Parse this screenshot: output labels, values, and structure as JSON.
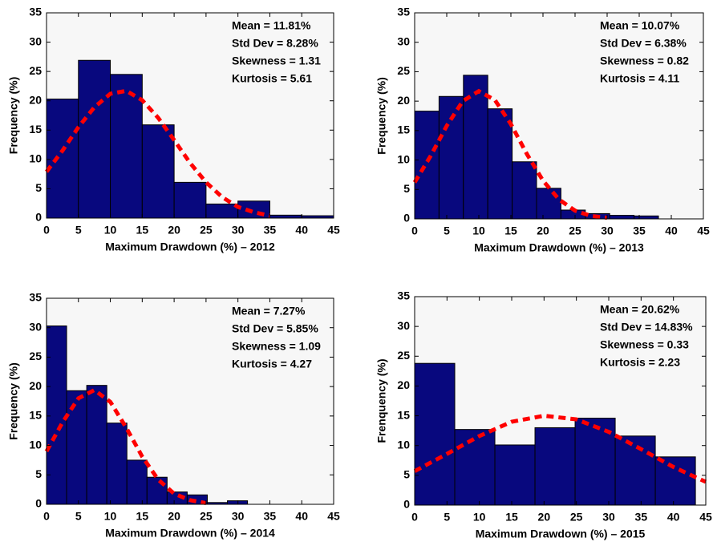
{
  "chart_data": [
    {
      "type": "histogram",
      "xlabel": "Maximum Drawdown (%) – 2012",
      "ylabel": "Frequency (%)",
      "annotations": [
        "Mean = 11.81%",
        "Std Dev = 8.28%",
        "Skewness = 1.31",
        "Kurtosis = 5.61"
      ],
      "bins": [
        0,
        5,
        10,
        15,
        20,
        25,
        30,
        35,
        40,
        45
      ],
      "values": [
        20.3,
        26.9,
        24.5,
        15.9,
        6.1,
        2.4,
        2.9,
        0.5,
        0.4
      ],
      "color": "#08087e",
      "fit": {
        "color": "#ff0000",
        "x": [
          0,
          2.5,
          5,
          7.5,
          10,
          12.5,
          15,
          17.5,
          20,
          22.5,
          25,
          27.5,
          30,
          32.5,
          35
        ],
        "values": [
          7.9,
          11.5,
          15.5,
          18.9,
          21.2,
          21.7,
          20.1,
          17.1,
          13.3,
          9.4,
          6.1,
          3.6,
          1.9,
          1.0,
          0.4
        ]
      },
      "xlim": [
        0,
        45
      ],
      "ylim": [
        0,
        35
      ],
      "xticks": [
        0,
        5,
        10,
        15,
        20,
        25,
        30,
        35,
        40,
        45
      ],
      "yticks": [
        0,
        5,
        10,
        15,
        20,
        25,
        30,
        35
      ]
    },
    {
      "type": "histogram",
      "xlabel": "Maximum Drawdown (%) – 2013",
      "ylabel": "Frequency (%)",
      "annotations": [
        "Mean = 10.07%",
        "Std Dev = 6.38%",
        "Skewness = 0.82",
        "Kurtosis = 4.11"
      ],
      "bins": [
        0,
        3.8,
        7.6,
        11.4,
        15.2,
        19,
        22.8,
        26.6,
        30.4,
        34.2,
        38
      ],
      "values": [
        18.3,
        20.8,
        24.4,
        18.7,
        9.7,
        5.2,
        1.5,
        0.9,
        0.6,
        0.5
      ],
      "color": "#08087e",
      "fit": {
        "color": "#ff0000",
        "x": [
          0,
          2.5,
          5,
          7.5,
          10,
          12.5,
          15,
          17.5,
          20,
          22.5,
          25,
          27.5,
          30
        ],
        "values": [
          6.2,
          10.7,
          15.8,
          20.0,
          21.7,
          20.2,
          16.1,
          11.0,
          6.5,
          3.3,
          1.4,
          0.5,
          0.2
        ]
      },
      "xlim": [
        0,
        45
      ],
      "ylim": [
        0,
        35
      ],
      "xticks": [
        0,
        5,
        10,
        15,
        20,
        25,
        30,
        35,
        40,
        45
      ],
      "yticks": [
        0,
        5,
        10,
        15,
        20,
        25,
        30,
        35
      ]
    },
    {
      "type": "histogram",
      "xlabel": "Maximum Drawdown (%) – 2014",
      "ylabel": "Frequency (%)",
      "annotations": [
        "Mean = 7.27%",
        "Std Dev = 5.85%",
        "Skewness = 1.09",
        "Kurtosis = 4.27"
      ],
      "bins": [
        0,
        3.15,
        6.3,
        9.45,
        12.6,
        15.75,
        18.9,
        22.05,
        25.2,
        28.35,
        31.5
      ],
      "values": [
        30.3,
        19.3,
        20.2,
        13.8,
        7.5,
        4.6,
        2.1,
        1.6,
        0.3,
        0.6
      ],
      "color": "#08087e",
      "fit": {
        "color": "#ff0000",
        "x": [
          0,
          2.5,
          5,
          7.5,
          10,
          12.5,
          15,
          17.5,
          20,
          22.5,
          25
        ],
        "values": [
          9.0,
          13.9,
          18.0,
          19.4,
          17.4,
          13.0,
          8.1,
          4.2,
          1.8,
          0.7,
          0.2
        ]
      },
      "xlim": [
        0,
        45
      ],
      "ylim": [
        0,
        35
      ],
      "xticks": [
        0,
        5,
        10,
        15,
        20,
        25,
        30,
        35,
        40,
        45
      ],
      "yticks": [
        0,
        5,
        10,
        15,
        20,
        25,
        30,
        35
      ]
    },
    {
      "type": "histogram",
      "xlabel": "Maximum Drawdown (%) – 2015",
      "ylabel": "Frenquency (%)",
      "annotations": [
        "Mean = 20.62%",
        "Std Dev = 14.83%",
        "Skewness = 0.33",
        "Kurtosis = 2.23"
      ],
      "bins": [
        0,
        6.2,
        12.4,
        18.6,
        24.8,
        31,
        37.2,
        43.4
      ],
      "values": [
        23.8,
        12.7,
        10.1,
        13.0,
        14.6,
        11.6,
        8.1
      ],
      "color": "#08087e",
      "fit": {
        "color": "#ff0000",
        "x": [
          0,
          5,
          10,
          15,
          20,
          25,
          30,
          35,
          40,
          45
        ],
        "values": [
          5.7,
          8.6,
          11.6,
          14.0,
          15.0,
          14.4,
          12.3,
          9.4,
          6.4,
          3.9
        ]
      },
      "xlim": [
        0,
        45
      ],
      "ylim": [
        0,
        35
      ],
      "xticks": [
        0,
        5,
        10,
        15,
        20,
        25,
        30,
        35,
        40,
        45
      ],
      "yticks": [
        0,
        5,
        10,
        15,
        20,
        25,
        30,
        35
      ]
    }
  ]
}
